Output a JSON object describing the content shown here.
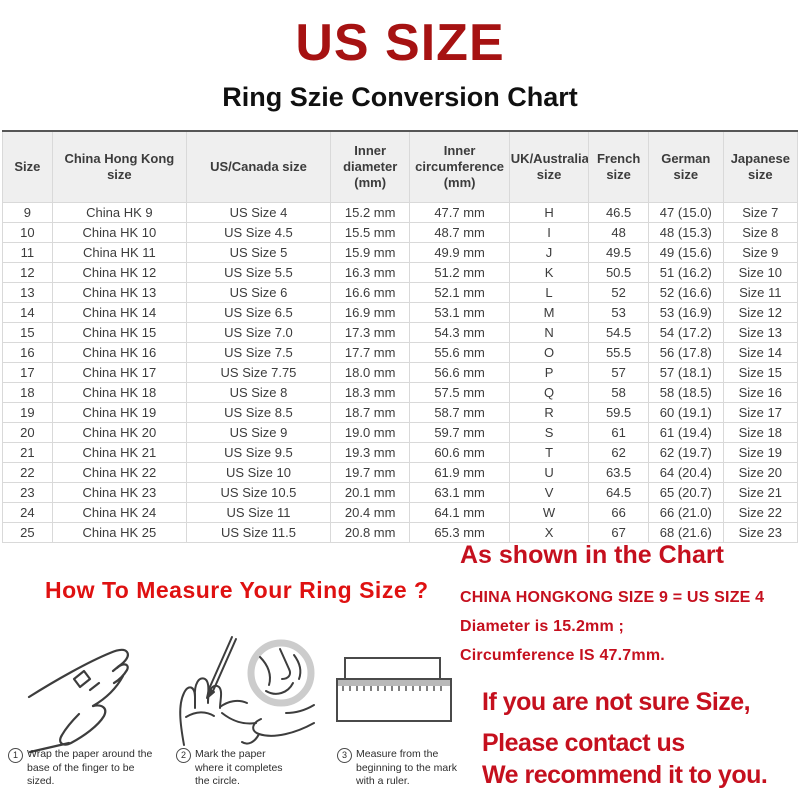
{
  "page": {
    "title": "US SIZE",
    "subtitle": "Ring Szie Conversion Chart"
  },
  "colors": {
    "title_red": "#A61212",
    "heading_red": "#DF1111",
    "note_red": "#C5101E",
    "table_border": "#D9D9D9",
    "table_top_border": "#565656",
    "header_bg": "#EFEFEF",
    "text_dark": "#3C3C3C"
  },
  "chart_data": {
    "type": "table",
    "title": "Ring Szie Conversion Chart",
    "columns": [
      "Size",
      "China Hong Kong size",
      "US/Canada size",
      "Inner diameter (mm)",
      "Inner circumference (mm)",
      "UK/Australian size",
      "French size",
      "German size",
      "Japanese size"
    ],
    "rows": [
      [
        "9",
        "China HK 9",
        "US Size 4",
        "15.2 mm",
        "47.7 mm",
        "H",
        "46.5",
        "47 (15.0)",
        "Size 7"
      ],
      [
        "10",
        "China HK 10",
        "US Size 4.5",
        "15.5 mm",
        "48.7 mm",
        "I",
        "48",
        "48 (15.3)",
        "Size 8"
      ],
      [
        "11",
        "China HK 11",
        "US Size 5",
        "15.9 mm",
        "49.9 mm",
        "J",
        "49.5",
        "49 (15.6)",
        "Size 9"
      ],
      [
        "12",
        "China HK 12",
        "US Size 5.5",
        "16.3 mm",
        "51.2 mm",
        "K",
        "50.5",
        "51 (16.2)",
        "Size 10"
      ],
      [
        "13",
        "China HK 13",
        "US Size 6",
        "16.6 mm",
        "52.1 mm",
        "L",
        "52",
        "52 (16.6)",
        "Size 11"
      ],
      [
        "14",
        "China HK 14",
        "US Size 6.5",
        "16.9 mm",
        "53.1 mm",
        "M",
        "53",
        "53 (16.9)",
        "Size 12"
      ],
      [
        "15",
        "China HK 15",
        "US Size 7.0",
        "17.3 mm",
        "54.3 mm",
        "N",
        "54.5",
        "54 (17.2)",
        "Size 13"
      ],
      [
        "16",
        "China HK 16",
        "US Size 7.5",
        "17.7 mm",
        "55.6 mm",
        "O",
        "55.5",
        "56 (17.8)",
        "Size 14"
      ],
      [
        "17",
        "China HK 17",
        "US Size 7.75",
        "18.0 mm",
        "56.6 mm",
        "P",
        "57",
        "57 (18.1)",
        "Size 15"
      ],
      [
        "18",
        "China HK 18",
        "US Size 8",
        "18.3 mm",
        "57.5 mm",
        "Q",
        "58",
        "58 (18.5)",
        "Size 16"
      ],
      [
        "19",
        "China HK 19",
        "US Size 8.5",
        "18.7 mm",
        "58.7 mm",
        "R",
        "59.5",
        "60 (19.1)",
        "Size 17"
      ],
      [
        "20",
        "China HK 20",
        "US Size 9",
        "19.0 mm",
        "59.7 mm",
        "S",
        "61",
        "61 (19.4)",
        "Size 18"
      ],
      [
        "21",
        "China HK 21",
        "US Size 9.5",
        "19.3 mm",
        "60.6 mm",
        "T",
        "62",
        "62 (19.7)",
        "Size 19"
      ],
      [
        "22",
        "China HK 22",
        "US Size 10",
        "19.7 mm",
        "61.9 mm",
        "U",
        "63.5",
        "64 (20.4)",
        "Size 20"
      ],
      [
        "23",
        "China HK 23",
        "US Size 10.5",
        "20.1 mm",
        "63.1 mm",
        "V",
        "64.5",
        "65 (20.7)",
        "Size 21"
      ],
      [
        "24",
        "China HK 24",
        "US Size 11",
        "20.4 mm",
        "64.1 mm",
        "W",
        "66",
        "66 (21.0)",
        "Size 22"
      ],
      [
        "25",
        "China HK 25",
        "US Size 11.5",
        "20.8 mm",
        "65.3 mm",
        "X",
        "67",
        "68 (21.6)",
        "Size 23"
      ]
    ]
  },
  "measure_section": {
    "heading": "How To Measure Your Ring Size ?",
    "steps": [
      {
        "number": "1",
        "text": "Wrap the paper around the base of the finger to be sized.",
        "icon": "hand-wrap-illustration"
      },
      {
        "number": "2",
        "text": "Mark the paper where it completes the circle.",
        "icon": "hand-mark-illustration"
      },
      {
        "number": "3",
        "text": "Measure from the beginning to the mark with a ruler.",
        "icon": "ruler-illustration"
      }
    ]
  },
  "chart_note": {
    "heading": "As shown in the Chart",
    "lines": [
      "CHINA HONGKONG SIZE 9 = US SIZE 4",
      "Diameter is 15.2mm ;",
      "Circumference IS 47.7mm."
    ]
  },
  "contact_note": {
    "lines": [
      "If you are not sure Size,",
      "Please contact us",
      "We recommend it to you."
    ]
  }
}
